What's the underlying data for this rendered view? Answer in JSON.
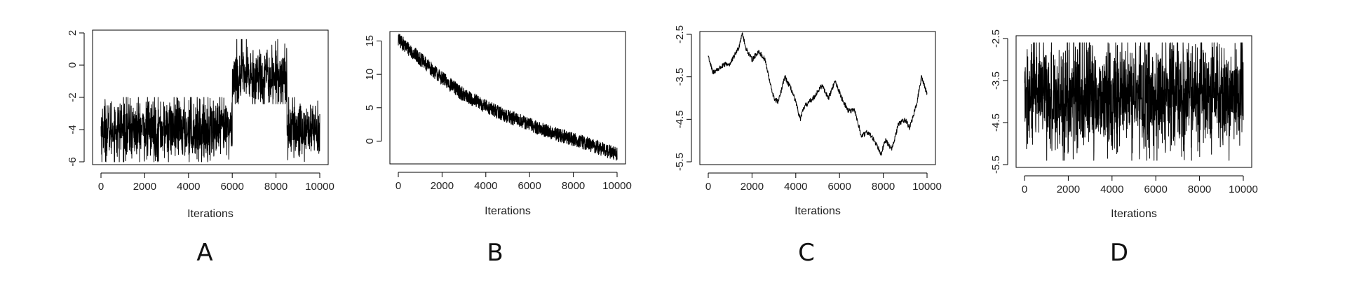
{
  "chart_data": [
    {
      "id": "A",
      "type": "line",
      "title": "",
      "xlabel": "Iterations",
      "ylabel": "",
      "panel_label": "A",
      "xlim": [
        0,
        10000
      ],
      "ylim": [
        -6,
        2
      ],
      "x_ticks": [
        0,
        2000,
        4000,
        6000,
        8000,
        10000
      ],
      "y_ticks": [
        -6,
        -4,
        -2,
        0,
        2
      ],
      "grid": false,
      "series_color": "#000000",
      "series": [
        {
          "description": "trace with regime shifts",
          "segments": [
            {
              "x_start": 0,
              "x_end": 6000,
              "mean": -4.0,
              "min": -6.0,
              "max": -2.0
            },
            {
              "x_start": 6000,
              "x_end": 8500,
              "mean": -0.7,
              "min": -2.4,
              "max": 1.6
            },
            {
              "x_start": 8500,
              "x_end": 10000,
              "mean": -4.0,
              "min": -6.0,
              "max": -2.0
            }
          ]
        }
      ]
    },
    {
      "id": "B",
      "type": "line",
      "title": "",
      "xlabel": "Iterations",
      "ylabel": "",
      "panel_label": "B",
      "xlim": [
        0,
        10000
      ],
      "ylim": [
        -3,
        16
      ],
      "x_ticks": [
        0,
        2000,
        4000,
        6000,
        8000,
        10000
      ],
      "y_ticks": [
        0,
        5,
        10,
        15
      ],
      "grid": false,
      "series_color": "#000000",
      "series": [
        {
          "description": "decaying trace",
          "points": [
            [
              0,
              15.2
            ],
            [
              1000,
              12.3
            ],
            [
              2000,
              9.4
            ],
            [
              3000,
              6.9
            ],
            [
              4000,
              5.2
            ],
            [
              5000,
              3.7
            ],
            [
              6000,
              2.5
            ],
            [
              7000,
              1.2
            ],
            [
              8000,
              0.3
            ],
            [
              9000,
              -0.8
            ],
            [
              10000,
              -2.0
            ]
          ],
          "band": 1.3
        }
      ]
    },
    {
      "id": "C",
      "type": "line",
      "title": "",
      "xlabel": "Iterations",
      "ylabel": "",
      "panel_label": "C",
      "xlim": [
        0,
        10000
      ],
      "ylim": [
        -5.5,
        -2.5
      ],
      "x_ticks": [
        0,
        2000,
        4000,
        6000,
        8000,
        10000
      ],
      "y_ticks": [
        -5.5,
        -4.5,
        -3.5,
        -2.5
      ],
      "y_tick_labels": [
        "-5.5",
        "-4.5",
        "-3.5",
        "-2.5"
      ],
      "grid": false,
      "series_color": "#000000",
      "series": [
        {
          "description": "slowly wandering trace",
          "points": [
            [
              0,
              -3.0
            ],
            [
              200,
              -3.4
            ],
            [
              500,
              -3.3
            ],
            [
              800,
              -3.2
            ],
            [
              1000,
              -3.2
            ],
            [
              1200,
              -3.0
            ],
            [
              1400,
              -2.8
            ],
            [
              1550,
              -2.45
            ],
            [
              1700,
              -2.8
            ],
            [
              2000,
              -3.1
            ],
            [
              2300,
              -2.9
            ],
            [
              2600,
              -3.1
            ],
            [
              2800,
              -3.6
            ],
            [
              3000,
              -4.0
            ],
            [
              3200,
              -4.1
            ],
            [
              3500,
              -3.5
            ],
            [
              3800,
              -3.8
            ],
            [
              4000,
              -4.1
            ],
            [
              4200,
              -4.5
            ],
            [
              4400,
              -4.2
            ],
            [
              4800,
              -4.0
            ],
            [
              5200,
              -3.7
            ],
            [
              5500,
              -4.0
            ],
            [
              5800,
              -3.6
            ],
            [
              6100,
              -4.0
            ],
            [
              6400,
              -4.3
            ],
            [
              6700,
              -4.3
            ],
            [
              7000,
              -4.9
            ],
            [
              7300,
              -4.8
            ],
            [
              7600,
              -5.0
            ],
            [
              7900,
              -5.3
            ],
            [
              8100,
              -5.0
            ],
            [
              8400,
              -5.2
            ],
            [
              8700,
              -4.6
            ],
            [
              9000,
              -4.5
            ],
            [
              9200,
              -4.7
            ],
            [
              9500,
              -4.2
            ],
            [
              9750,
              -3.5
            ],
            [
              10000,
              -3.9
            ]
          ]
        }
      ]
    },
    {
      "id": "D",
      "type": "line",
      "title": "",
      "xlabel": "Iterations",
      "ylabel": "",
      "panel_label": "D",
      "xlim": [
        0,
        10000
      ],
      "ylim": [
        -5.5,
        -2.5
      ],
      "x_ticks": [
        0,
        2000,
        4000,
        6000,
        8000,
        10000
      ],
      "y_ticks": [
        -5.5,
        -4.5,
        -3.5,
        -2.5
      ],
      "y_tick_labels": [
        "-5.5",
        "-4.5",
        "-3.5",
        "-2.5"
      ],
      "grid": false,
      "series_color": "#000000",
      "series": [
        {
          "description": "well-mixed stationary trace",
          "segments": [
            {
              "x_start": 0,
              "x_end": 10000,
              "mean": -3.9,
              "min": -5.4,
              "max": -2.6
            }
          ]
        }
      ]
    }
  ]
}
